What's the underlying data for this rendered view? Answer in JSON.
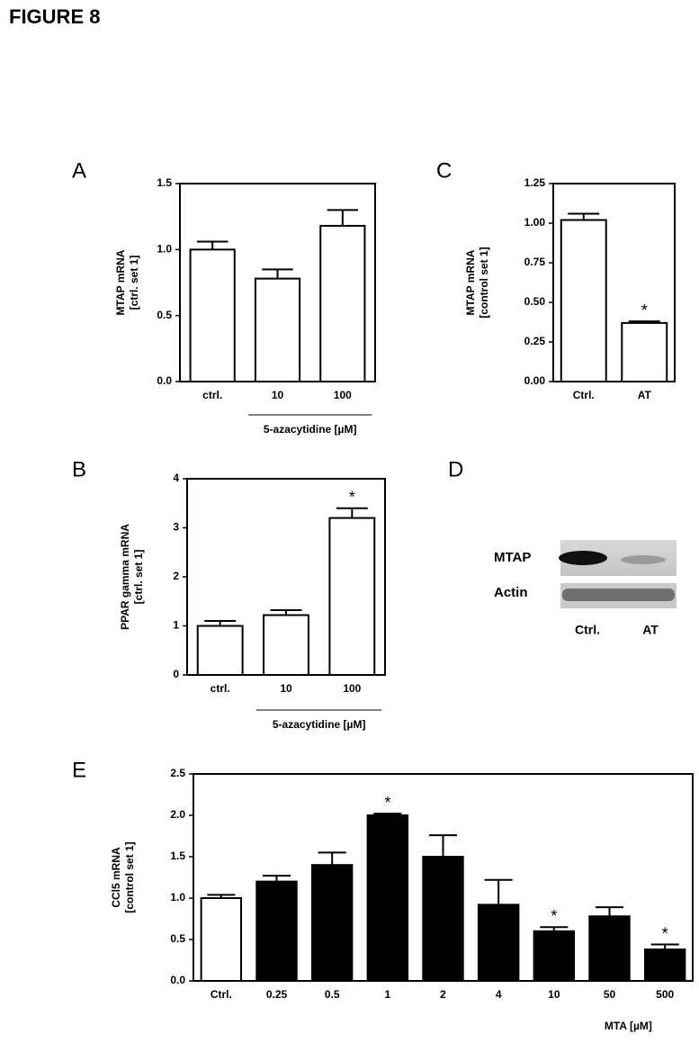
{
  "figure_title": "FIGURE 8",
  "chart_data": [
    {
      "type": "bar",
      "panel": "A",
      "categories": [
        "ctrl.",
        "10",
        "100"
      ],
      "values": [
        1.0,
        0.78,
        1.18
      ],
      "errors": [
        0.06,
        0.07,
        0.12
      ],
      "color": "#ffffff",
      "ylim": [
        0,
        1.5
      ],
      "yticks": [
        {
          "value": 0,
          "label": "0.0"
        },
        {
          "value": 0.5,
          "label": "0.5"
        },
        {
          "value": 1,
          "label": "1.0"
        },
        {
          "value": 1.5,
          "label": "1.5"
        }
      ],
      "ylabel": "MTAP mRNA",
      "ylabel_unit": "[ctrl. set 1]",
      "group_label": "5-azacytidine [µM]",
      "significance": [
        null,
        null,
        null
      ]
    },
    {
      "type": "bar",
      "panel": "B",
      "categories": [
        "ctrl.",
        "10",
        "100"
      ],
      "values": [
        1.0,
        1.22,
        3.2
      ],
      "errors": [
        0.1,
        0.1,
        0.2
      ],
      "color": "#ffffff",
      "ylim": [
        0,
        4
      ],
      "yticks": [
        0,
        1,
        2,
        3,
        4
      ],
      "ylabel": "PPAR gamma mRNA",
      "ylabel_unit": "[ctrl. set 1]",
      "group_label": "5-azacytidine [µM]",
      "significance": [
        null,
        null,
        "*"
      ]
    },
    {
      "type": "bar",
      "panel": "C",
      "categories": [
        "Ctrl.",
        "AT"
      ],
      "values": [
        1.02,
        0.37
      ],
      "errors": [
        0.04,
        0.01
      ],
      "color": "#ffffff",
      "ylim": [
        0,
        1.25
      ],
      "yticks": [
        {
          "value": 0,
          "label": "0.00"
        },
        {
          "value": 0.25,
          "label": "0.25"
        },
        {
          "value": 0.5,
          "label": "0.50"
        },
        {
          "value": 0.75,
          "label": "0.75"
        },
        {
          "value": 1,
          "label": "1.00"
        },
        {
          "value": 1.25,
          "label": "1.25"
        }
      ],
      "ylabel": "MTAP mRNA",
      "ylabel_unit": "[control set 1]",
      "significance": [
        null,
        "*"
      ]
    },
    {
      "type": "bar",
      "panel": "E",
      "categories": [
        "Ctrl.",
        "0.25",
        "0.5",
        "1",
        "2",
        "4",
        "10",
        "50",
        "500"
      ],
      "values": [
        1.0,
        1.2,
        1.4,
        2.0,
        1.5,
        0.92,
        0.6,
        0.78,
        0.38
      ],
      "errors": [
        0.04,
        0.07,
        0.15,
        0.02,
        0.26,
        0.3,
        0.05,
        0.11,
        0.06
      ],
      "colors": [
        "#ffffff",
        "#000000",
        "#000000",
        "#000000",
        "#000000",
        "#000000",
        "#000000",
        "#000000",
        "#000000"
      ],
      "ylim": [
        0,
        2.5
      ],
      "yticks": [
        {
          "value": 0,
          "label": "0.0"
        },
        {
          "value": 0.5,
          "label": "0.5"
        },
        {
          "value": 1,
          "label": "1.0"
        },
        {
          "value": 1.5,
          "label": "1.5"
        },
        {
          "value": 2,
          "label": "2.0"
        },
        {
          "value": 2.5,
          "label": "2.5"
        }
      ],
      "ylabel": "CCl5 mRNA",
      "ylabel_unit": "[control set 1]",
      "xlabel": "MTA",
      "xlabel_unit": "[µM]",
      "significance": [
        null,
        null,
        null,
        "*",
        null,
        null,
        "*",
        null,
        "*"
      ]
    }
  ],
  "blot": {
    "panel": "D",
    "rows": [
      "MTAP",
      "Actin"
    ],
    "columns": [
      "Ctrl.",
      "AT"
    ]
  }
}
